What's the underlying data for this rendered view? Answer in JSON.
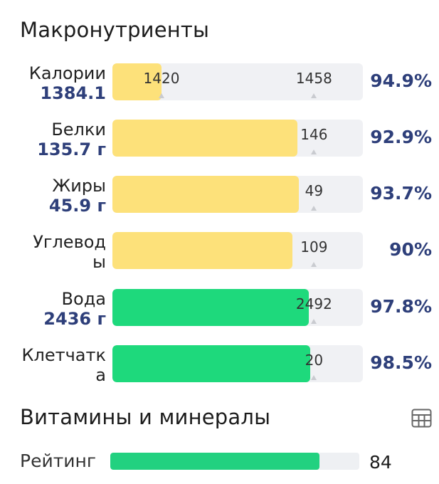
{
  "macro_title": "Макронутриенты",
  "vitamins_title": "Витамины и минералы",
  "rows": [
    {
      "name_line1": "Калории",
      "name_line2": "",
      "value": "1384.1",
      "marks": [
        {
          "label": "1420",
          "pos": 0.196
        },
        {
          "label": "1458",
          "pos": 0.805
        }
      ],
      "fill": 0.195,
      "color": "yellow",
      "percent": "94.9%"
    },
    {
      "name_line1": "Белки",
      "name_line2": "",
      "value": "135.7 г",
      "marks": [
        {
          "label": "146",
          "pos": 0.805
        }
      ],
      "fill": 0.74,
      "color": "yellow",
      "percent": "92.9%"
    },
    {
      "name_line1": "Жиры",
      "name_line2": "",
      "value": "45.9 г",
      "marks": [
        {
          "label": "49",
          "pos": 0.805
        }
      ],
      "fill": 0.745,
      "color": "yellow",
      "percent": "93.7%"
    },
    {
      "name_line1": "Углевод",
      "name_line2": "ы",
      "value": "",
      "marks": [
        {
          "label": "109",
          "pos": 0.805
        }
      ],
      "fill": 0.72,
      "color": "yellow",
      "percent": "90%"
    },
    {
      "name_line1": "Вода",
      "name_line2": "",
      "value": "2436 г",
      "marks": [
        {
          "label": "2492",
          "pos": 0.805
        }
      ],
      "fill": 0.785,
      "color": "green",
      "percent": "97.8%"
    },
    {
      "name_line1": "Клетчатк",
      "name_line2": "а",
      "value": "",
      "marks": [
        {
          "label": "20",
          "pos": 0.805
        }
      ],
      "fill": 0.79,
      "color": "green",
      "percent": "98.5%"
    }
  ],
  "rating": {
    "label": "Рейтинг",
    "value": "84",
    "fill": 0.84
  },
  "icons": {
    "table": "table-grid-icon"
  }
}
